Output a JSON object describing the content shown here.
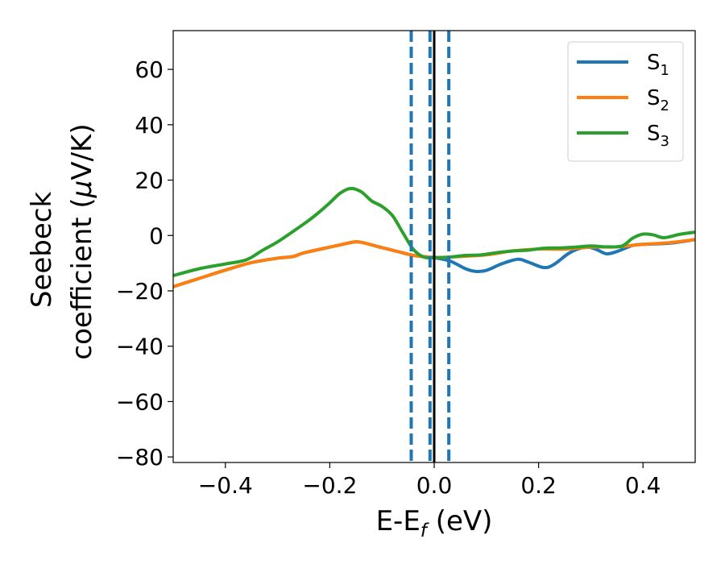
{
  "chart_data": {
    "type": "line",
    "title": "",
    "xlabel": {
      "base": "E-E",
      "sub": "f",
      "rest": " (eV)"
    },
    "ylabel": {
      "line1": "Seebeck",
      "line2_pre": "coefficient  (",
      "line2_mu": "μ",
      "line2_post": "V/K)"
    },
    "xlim": [
      -0.5,
      0.5
    ],
    "ylim": [
      -82,
      74
    ],
    "xticks": [
      -0.4,
      -0.2,
      0.0,
      0.2,
      0.4
    ],
    "xtick_labels": [
      "−0.4",
      "−0.2",
      "0.0",
      "0.2",
      "0.4"
    ],
    "yticks": [
      60,
      40,
      20,
      0,
      -20,
      -40,
      -60,
      -80
    ],
    "ytick_labels": [
      "60",
      "40",
      "20",
      "0",
      "−20",
      "−40",
      "−60",
      "−80"
    ],
    "grid": false,
    "legend_position": "top-right",
    "vertical_lines": [
      {
        "x": -0.044,
        "style": "dashed",
        "color": "#1f77b4"
      },
      {
        "x": -0.008,
        "style": "dashed",
        "color": "#1f77b4"
      },
      {
        "x": 0.028,
        "style": "dashed",
        "color": "#1f77b4"
      },
      {
        "x": 0.0,
        "style": "solid",
        "color": "#000000"
      }
    ],
    "series": [
      {
        "name": "S",
        "sub": "1",
        "color": "#1f77b4",
        "x": [
          -0.5,
          -0.45,
          -0.4,
          -0.35,
          -0.3,
          -0.27,
          -0.25,
          -0.2,
          -0.18,
          -0.15,
          -0.13,
          -0.1,
          -0.07,
          -0.04,
          -0.01,
          0.0,
          0.03,
          0.06,
          0.08,
          0.1,
          0.13,
          0.16,
          0.18,
          0.21,
          0.23,
          0.26,
          0.29,
          0.31,
          0.33,
          0.35,
          0.38,
          0.4,
          0.45,
          0.5
        ],
        "values": [
          -18.5,
          -15.5,
          -12.5,
          -9.8,
          -8.2,
          -7.6,
          -6.3,
          -4.2,
          -3.4,
          -2.3,
          -2.9,
          -4.4,
          -5.8,
          -7.2,
          -7.8,
          -8.0,
          -9.2,
          -12.0,
          -13.0,
          -12.6,
          -10.2,
          -8.6,
          -9.6,
          -11.6,
          -10.4,
          -6.2,
          -4.2,
          -5.0,
          -6.6,
          -5.8,
          -3.6,
          -3.2,
          -2.8,
          -1.5
        ]
      },
      {
        "name": "S",
        "sub": "2",
        "color": "#ff7f0e",
        "x": [
          -0.5,
          -0.45,
          -0.4,
          -0.35,
          -0.3,
          -0.27,
          -0.25,
          -0.2,
          -0.18,
          -0.15,
          -0.13,
          -0.1,
          -0.07,
          -0.04,
          -0.01,
          0.0,
          0.05,
          0.1,
          0.15,
          0.2,
          0.25,
          0.3,
          0.35,
          0.4,
          0.45,
          0.5
        ],
        "values": [
          -18.5,
          -15.5,
          -12.5,
          -9.8,
          -8.2,
          -7.6,
          -6.3,
          -4.2,
          -3.4,
          -2.3,
          -2.9,
          -4.4,
          -5.8,
          -7.2,
          -7.8,
          -8.0,
          -7.6,
          -7.0,
          -5.6,
          -4.9,
          -4.9,
          -4.2,
          -4.1,
          -3.2,
          -2.6,
          -1.5
        ]
      },
      {
        "name": "S",
        "sub": "3",
        "color": "#2ca02c",
        "x": [
          -0.5,
          -0.45,
          -0.4,
          -0.36,
          -0.33,
          -0.3,
          -0.27,
          -0.24,
          -0.22,
          -0.2,
          -0.18,
          -0.16,
          -0.14,
          -0.12,
          -0.1,
          -0.08,
          -0.06,
          -0.04,
          -0.02,
          0.0,
          0.03,
          0.06,
          0.09,
          0.12,
          0.15,
          0.18,
          0.21,
          0.24,
          0.27,
          0.3,
          0.33,
          0.36,
          0.38,
          0.4,
          0.42,
          0.44,
          0.47,
          0.5
        ],
        "values": [
          -14.5,
          -12.0,
          -10.3,
          -8.8,
          -5.5,
          -2.3,
          1.5,
          5.5,
          8.5,
          11.8,
          15.3,
          17.0,
          15.8,
          12.5,
          10.5,
          7.2,
          1.0,
          -5.0,
          -7.8,
          -8.0,
          -7.8,
          -7.2,
          -7.0,
          -6.2,
          -5.6,
          -5.3,
          -4.6,
          -4.5,
          -4.2,
          -3.8,
          -4.1,
          -3.8,
          -1.0,
          0.5,
          0.2,
          -0.8,
          0.4,
          1.2
        ]
      }
    ]
  }
}
